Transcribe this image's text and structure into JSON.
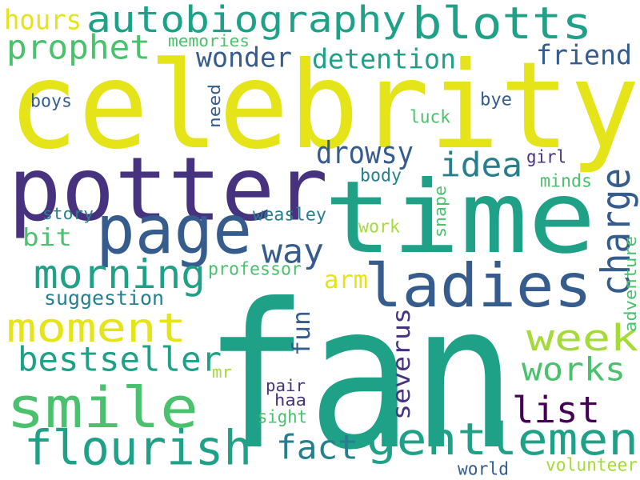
{
  "colors": {
    "yellow": "#e5e419",
    "lime": "#a5db36",
    "green": "#4ac16d",
    "teal": "#1fa187",
    "cyan": "#277f8e",
    "blue": "#365c8d",
    "indigo": "#46327e",
    "purple": "#440154"
  },
  "words": [
    {
      "id": "fan",
      "text": "fan",
      "color": "#1fa187"
    },
    {
      "id": "celebrity",
      "text": "celebrity",
      "color": "#e5e419"
    },
    {
      "id": "time",
      "text": "time",
      "color": "#1fa187"
    },
    {
      "id": "potter",
      "text": "potter",
      "color": "#46327e"
    },
    {
      "id": "page",
      "text": "page",
      "color": "#365c8d"
    },
    {
      "id": "ladies",
      "text": "ladies",
      "color": "#365c8d"
    },
    {
      "id": "smile",
      "text": "smile",
      "color": "#4ac16d"
    },
    {
      "id": "flourish",
      "text": "flourish",
      "color": "#1fa187"
    },
    {
      "id": "gentlemen",
      "text": "gentlemen",
      "color": "#1fa187"
    },
    {
      "id": "autobiography",
      "text": "autobiography",
      "color": "#1fa187"
    },
    {
      "id": "blotts",
      "text": "blotts",
      "color": "#1fa187"
    },
    {
      "id": "moment",
      "text": "moment",
      "color": "#e5e419"
    },
    {
      "id": "morning",
      "text": "morning",
      "color": "#1fa187"
    },
    {
      "id": "prophet",
      "text": "prophet",
      "color": "#4ac16d"
    },
    {
      "id": "bestseller",
      "text": "bestseller",
      "color": "#1fa187"
    },
    {
      "id": "week",
      "text": "week",
      "color": "#a5db36"
    },
    {
      "id": "works",
      "text": "works",
      "color": "#4ac16d"
    },
    {
      "id": "list",
      "text": "list",
      "color": "#440154"
    },
    {
      "id": "way",
      "text": "way",
      "color": "#365c8d"
    },
    {
      "id": "idea",
      "text": "idea",
      "color": "#277f8e"
    },
    {
      "id": "fact",
      "text": "fact",
      "color": "#277f8e"
    },
    {
      "id": "charge",
      "text": "charge",
      "color": "#365c8d"
    },
    {
      "id": "drowsy",
      "text": "drowsy",
      "color": "#365c8d"
    },
    {
      "id": "wonder",
      "text": "wonder",
      "color": "#365c8d"
    },
    {
      "id": "detention",
      "text": "detention",
      "color": "#1fa187"
    },
    {
      "id": "friend",
      "text": "friend",
      "color": "#365c8d"
    },
    {
      "id": "hours",
      "text": "hours",
      "color": "#e5e419"
    },
    {
      "id": "severus",
      "text": "severus",
      "color": "#46327e"
    },
    {
      "id": "fun",
      "text": "fun",
      "color": "#365c8d"
    },
    {
      "id": "arm",
      "text": "arm",
      "color": "#e5e419"
    },
    {
      "id": "bit",
      "text": "bit",
      "color": "#4ac16d"
    },
    {
      "id": "suggestion",
      "text": "suggestion",
      "color": "#277f8e"
    },
    {
      "id": "professor",
      "text": "professor",
      "color": "#4ac16d"
    },
    {
      "id": "weasley",
      "text": "weasley",
      "color": "#277f8e"
    },
    {
      "id": "story",
      "text": "story",
      "color": "#277f8e"
    },
    {
      "id": "memories",
      "text": "memories",
      "color": "#4ac16d"
    },
    {
      "id": "boys",
      "text": "boys",
      "color": "#365c8d"
    },
    {
      "id": "need",
      "text": "need",
      "color": "#365c8d"
    },
    {
      "id": "luck",
      "text": "luck",
      "color": "#4ac16d"
    },
    {
      "id": "bye",
      "text": "bye",
      "color": "#365c8d"
    },
    {
      "id": "girl",
      "text": "girl",
      "color": "#46327e"
    },
    {
      "id": "body",
      "text": "body",
      "color": "#277f8e"
    },
    {
      "id": "minds",
      "text": "minds",
      "color": "#4ac16d"
    },
    {
      "id": "snape",
      "text": "snape",
      "color": "#4ac16d"
    },
    {
      "id": "work",
      "text": "work",
      "color": "#a5db36"
    },
    {
      "id": "adventure",
      "text": "adventure",
      "color": "#4ac16d"
    },
    {
      "id": "mr",
      "text": "mr",
      "color": "#a5db36"
    },
    {
      "id": "pair",
      "text": "pair",
      "color": "#46327e"
    },
    {
      "id": "haa",
      "text": "haa",
      "color": "#46327e"
    },
    {
      "id": "sight",
      "text": "sight",
      "color": "#4ac16d"
    },
    {
      "id": "world",
      "text": "world",
      "color": "#365c8d"
    },
    {
      "id": "volunteer",
      "text": "volunteer",
      "color": "#a5db36"
    }
  ]
}
